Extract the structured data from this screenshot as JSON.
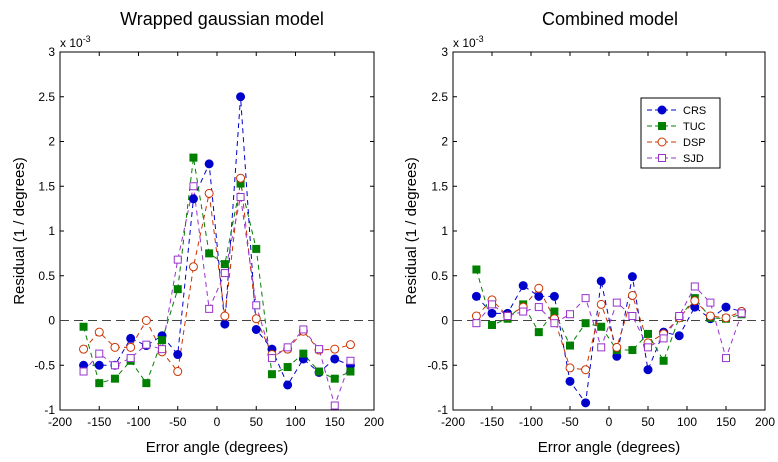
{
  "chart_data": [
    {
      "type": "line",
      "title": "Wrapped gaussian model",
      "xlabel": "Error angle (degrees)",
      "ylabel": "Residual (1 / degrees)",
      "y_multiplier": "x 10",
      "y_multiplier_exp": "-3",
      "xlim": [
        -200,
        200
      ],
      "ylim": [
        -1,
        3
      ],
      "xticks": [
        "-200",
        "-150",
        "-100",
        "-50",
        "0",
        "50",
        "100",
        "150",
        "200"
      ],
      "yticks": [
        "-1",
        "-0.5",
        "0",
        "0.5",
        "1",
        "1.5",
        "2",
        "2.5",
        "3"
      ],
      "zero_line": true,
      "x": [
        -170,
        -150,
        -130,
        -110,
        -90,
        -70,
        -50,
        -30,
        -10,
        10,
        30,
        50,
        70,
        90,
        110,
        130,
        150,
        170
      ],
      "series": [
        {
          "name": "CRS",
          "color": "#0000cc",
          "marker": "filled-circle",
          "values": [
            -0.5,
            -0.5,
            -0.5,
            -0.2,
            -0.28,
            -0.17,
            -0.38,
            1.36,
            1.75,
            -0.04,
            2.5,
            -0.1,
            -0.32,
            -0.72,
            -0.43,
            -0.58,
            -0.43,
            -0.5
          ]
        },
        {
          "name": "TUC",
          "color": "#008000",
          "marker": "filled-square",
          "values": [
            -0.07,
            -0.7,
            -0.65,
            -0.45,
            -0.7,
            -0.22,
            0.35,
            1.82,
            0.75,
            0.63,
            1.53,
            0.8,
            -0.6,
            -0.52,
            -0.37,
            -0.57,
            -0.65,
            -0.57
          ]
        },
        {
          "name": "DSP",
          "color": "#cc3300",
          "marker": "open-circle",
          "values": [
            -0.32,
            -0.13,
            -0.3,
            -0.3,
            0.0,
            -0.35,
            -0.57,
            0.6,
            1.42,
            0.05,
            1.59,
            0.02,
            -0.38,
            -0.32,
            -0.12,
            -0.33,
            -0.32,
            -0.27
          ]
        },
        {
          "name": "SJD",
          "color": "#9933cc",
          "marker": "open-square",
          "values": [
            -0.57,
            -0.37,
            -0.5,
            -0.42,
            -0.27,
            -0.32,
            0.68,
            1.5,
            0.13,
            0.53,
            1.38,
            0.17,
            -0.42,
            -0.3,
            -0.1,
            -0.32,
            -0.95,
            -0.45
          ]
        }
      ]
    },
    {
      "type": "line",
      "title": "Combined model",
      "xlabel": "Error angle (degrees)",
      "ylabel": "Residual (1 / degrees)",
      "y_multiplier": "x 10",
      "y_multiplier_exp": "-3",
      "xlim": [
        -200,
        200
      ],
      "ylim": [
        -1,
        3
      ],
      "xticks": [
        "-200",
        "-150",
        "-100",
        "-50",
        "0",
        "50",
        "100",
        "150",
        "200"
      ],
      "yticks": [
        "-1",
        "-0.5",
        "0",
        "0.5",
        "1",
        "1.5",
        "2",
        "2.5",
        "3"
      ],
      "zero_line": true,
      "legend_position": "top-right",
      "x": [
        -170,
        -150,
        -130,
        -110,
        -90,
        -70,
        -50,
        -30,
        -10,
        10,
        30,
        50,
        70,
        90,
        110,
        130,
        150,
        170
      ],
      "series": [
        {
          "name": "CRS",
          "color": "#0000cc",
          "marker": "filled-circle",
          "values": [
            0.27,
            0.08,
            0.08,
            0.39,
            0.27,
            0.27,
            -0.68,
            -0.92,
            0.44,
            -0.4,
            0.49,
            -0.55,
            -0.13,
            -0.17,
            0.15,
            0.02,
            0.15,
            0.1
          ]
        },
        {
          "name": "TUC",
          "color": "#008000",
          "marker": "filled-square",
          "values": [
            0.57,
            -0.05,
            0.02,
            0.18,
            -0.13,
            0.1,
            -0.28,
            -0.03,
            -0.07,
            -0.33,
            -0.33,
            -0.15,
            -0.45,
            0.03,
            0.25,
            0.03,
            0.02,
            0.07
          ]
        },
        {
          "name": "DSP",
          "color": "#cc3300",
          "marker": "open-circle",
          "values": [
            0.05,
            0.23,
            0.05,
            0.15,
            0.36,
            0.02,
            -0.53,
            -0.55,
            0.18,
            -0.3,
            0.28,
            -0.25,
            -0.15,
            0.03,
            0.22,
            0.05,
            0.03,
            0.1
          ]
        },
        {
          "name": "SJD",
          "color": "#9933cc",
          "marker": "open-square",
          "values": [
            -0.03,
            0.18,
            0.05,
            0.1,
            0.15,
            -0.03,
            0.07,
            0.25,
            -0.3,
            0.2,
            0.05,
            -0.3,
            -0.2,
            0.05,
            0.38,
            0.2,
            -0.42,
            0.08
          ]
        }
      ]
    }
  ]
}
